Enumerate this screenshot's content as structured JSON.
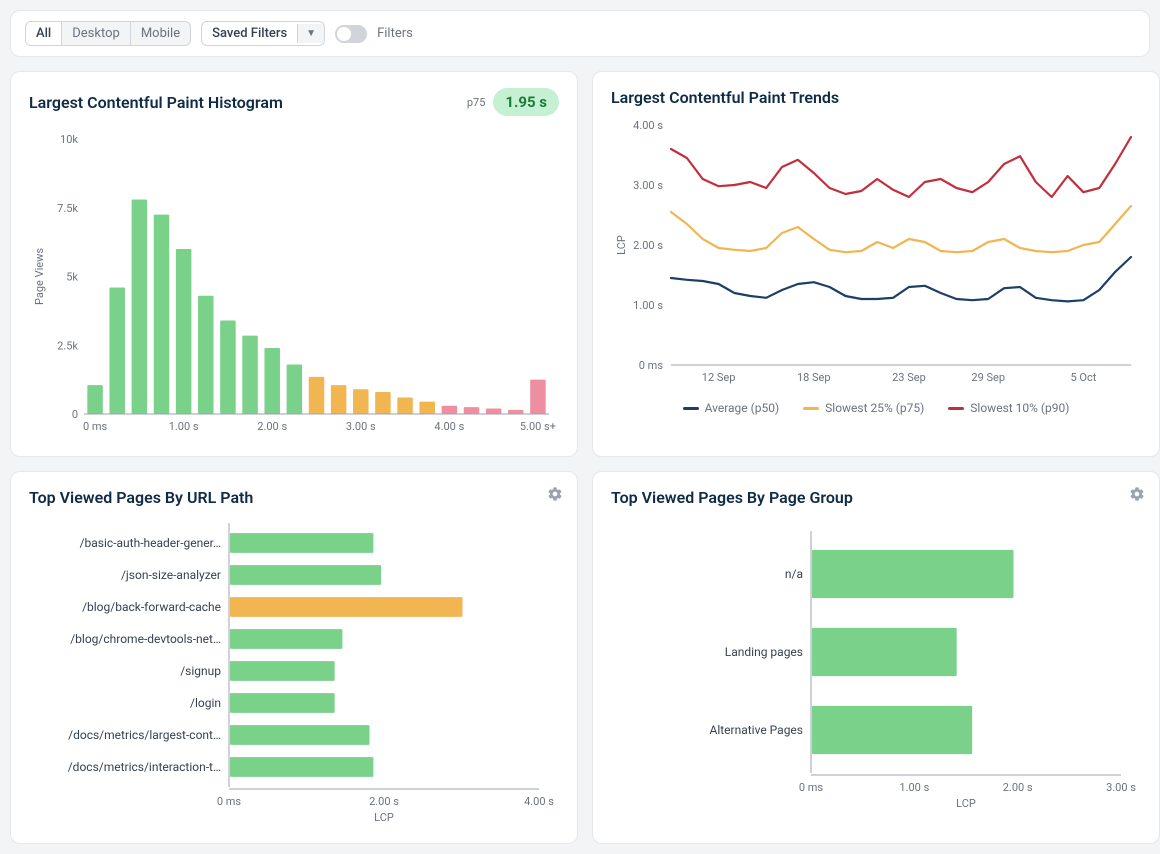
{
  "filters": {
    "segments": [
      "All",
      "Desktop",
      "Mobile"
    ],
    "active_segment": "All",
    "saved_filters_label": "Saved Filters",
    "toggle_label": "Filters",
    "toggle_on": false
  },
  "histogram": {
    "title": "Largest Contentful Paint Histogram",
    "p75_label": "p75",
    "p75_value": "1.95 s",
    "y_label": "Page Views",
    "y_max": 10000,
    "y_ticks": [
      {
        "v": 0,
        "label": "0"
      },
      {
        "v": 2500,
        "label": "2.5k"
      },
      {
        "v": 5000,
        "label": "5k"
      },
      {
        "v": 7500,
        "label": "7.5k"
      },
      {
        "v": 10000,
        "label": "10k"
      }
    ],
    "x_ticks": [
      "0 ms",
      "1.00 s",
      "2.00 s",
      "3.00 s",
      "4.00 s",
      "5.00 s+"
    ],
    "bars": [
      {
        "v": 1050,
        "color": "#79d18a"
      },
      {
        "v": 4600,
        "color": "#79d18a"
      },
      {
        "v": 7800,
        "color": "#79d18a"
      },
      {
        "v": 7250,
        "color": "#79d18a"
      },
      {
        "v": 6000,
        "color": "#79d18a"
      },
      {
        "v": 4300,
        "color": "#79d18a"
      },
      {
        "v": 3400,
        "color": "#79d18a"
      },
      {
        "v": 2850,
        "color": "#79d18a"
      },
      {
        "v": 2400,
        "color": "#79d18a"
      },
      {
        "v": 1800,
        "color": "#79d18a"
      },
      {
        "v": 1350,
        "color": "#f1b552"
      },
      {
        "v": 1050,
        "color": "#f1b552"
      },
      {
        "v": 900,
        "color": "#f1b552"
      },
      {
        "v": 800,
        "color": "#f1b552"
      },
      {
        "v": 600,
        "color": "#f1b552"
      },
      {
        "v": 450,
        "color": "#f1b552"
      },
      {
        "v": 300,
        "color": "#ed8fa0"
      },
      {
        "v": 250,
        "color": "#ed8fa0"
      },
      {
        "v": 200,
        "color": "#ed8fa0"
      },
      {
        "v": 150,
        "color": "#ed8fa0"
      },
      {
        "v": 1250,
        "color": "#ed8fa0"
      }
    ],
    "colors": {
      "good": "#79d18a",
      "needs": "#f1b552",
      "poor": "#ed8fa0"
    }
  },
  "trends": {
    "title": "Largest Contentful Paint Trends",
    "y_label": "LCP",
    "y_ticks": [
      {
        "v": 0,
        "label": "0 ms"
      },
      {
        "v": 1,
        "label": "1.00 s"
      },
      {
        "v": 2,
        "label": "2.00 s"
      },
      {
        "v": 3,
        "label": "3.00 s"
      },
      {
        "v": 4,
        "label": "4.00 s"
      }
    ],
    "x_ticks": [
      "12 Sep",
      "18 Sep",
      "23 Sep",
      "29 Sep",
      "5 Oct"
    ],
    "legend": [
      {
        "label": "Average (p50)",
        "color": "#1d3f66"
      },
      {
        "label": "Slowest 25% (p75)",
        "color": "#f1b552"
      },
      {
        "label": "Slowest 10% (p90)",
        "color": "#c22f3c"
      }
    ],
    "x_count": 30,
    "series": {
      "p50": [
        1.45,
        1.42,
        1.4,
        1.35,
        1.2,
        1.15,
        1.12,
        1.25,
        1.35,
        1.38,
        1.3,
        1.15,
        1.1,
        1.1,
        1.12,
        1.3,
        1.32,
        1.2,
        1.1,
        1.08,
        1.1,
        1.28,
        1.3,
        1.12,
        1.08,
        1.06,
        1.08,
        1.25,
        1.55,
        1.8
      ],
      "p75": [
        2.55,
        2.35,
        2.1,
        1.95,
        1.92,
        1.9,
        1.95,
        2.2,
        2.3,
        2.1,
        1.92,
        1.88,
        1.9,
        2.05,
        1.95,
        2.1,
        2.05,
        1.9,
        1.88,
        1.9,
        2.05,
        2.1,
        1.95,
        1.9,
        1.88,
        1.9,
        2.0,
        2.05,
        2.35,
        2.65
      ],
      "p90": [
        3.6,
        3.45,
        3.1,
        2.98,
        3.0,
        3.05,
        2.95,
        3.3,
        3.42,
        3.2,
        2.95,
        2.85,
        2.9,
        3.1,
        2.92,
        2.8,
        3.05,
        3.1,
        2.95,
        2.88,
        3.05,
        3.35,
        3.48,
        3.05,
        2.8,
        3.15,
        2.88,
        2.95,
        3.35,
        3.8
      ]
    }
  },
  "top_url": {
    "title": "Top Viewed Pages By URL Path",
    "x_label": "LCP",
    "x_max": 4,
    "x_ticks": [
      {
        "v": 0,
        "label": "0 ms"
      },
      {
        "v": 2,
        "label": "2.00 s"
      },
      {
        "v": 4,
        "label": "4.00 s"
      }
    ],
    "rows": [
      {
        "label": "/basic-auth-header-gener…",
        "value": 1.85,
        "color": "#79d18a"
      },
      {
        "label": "/json-size-analyzer",
        "value": 1.95,
        "color": "#79d18a"
      },
      {
        "label": "/blog/back-forward-cache",
        "value": 3.0,
        "color": "#f1b552"
      },
      {
        "label": "/blog/chrome-devtools-net…",
        "value": 1.45,
        "color": "#79d18a"
      },
      {
        "label": "/signup",
        "value": 1.35,
        "color": "#79d18a"
      },
      {
        "label": "/login",
        "value": 1.35,
        "color": "#79d18a"
      },
      {
        "label": "/docs/metrics/largest-cont…",
        "value": 1.8,
        "color": "#79d18a"
      },
      {
        "label": "/docs/metrics/interaction-t…",
        "value": 1.85,
        "color": "#79d18a"
      }
    ]
  },
  "top_group": {
    "title": "Top Viewed Pages By Page Group",
    "x_label": "LCP",
    "x_max": 3,
    "x_ticks": [
      {
        "v": 0,
        "label": "0 ms"
      },
      {
        "v": 1,
        "label": "1.00 s"
      },
      {
        "v": 2,
        "label": "2.00 s"
      },
      {
        "v": 3,
        "label": "3.00 s"
      }
    ],
    "rows": [
      {
        "label": "n/a",
        "value": 1.95,
        "color": "#79d18a"
      },
      {
        "label": "Landing pages",
        "value": 1.4,
        "color": "#79d18a"
      },
      {
        "label": "Alternative Pages",
        "value": 1.55,
        "color": "#79d18a"
      }
    ]
  }
}
